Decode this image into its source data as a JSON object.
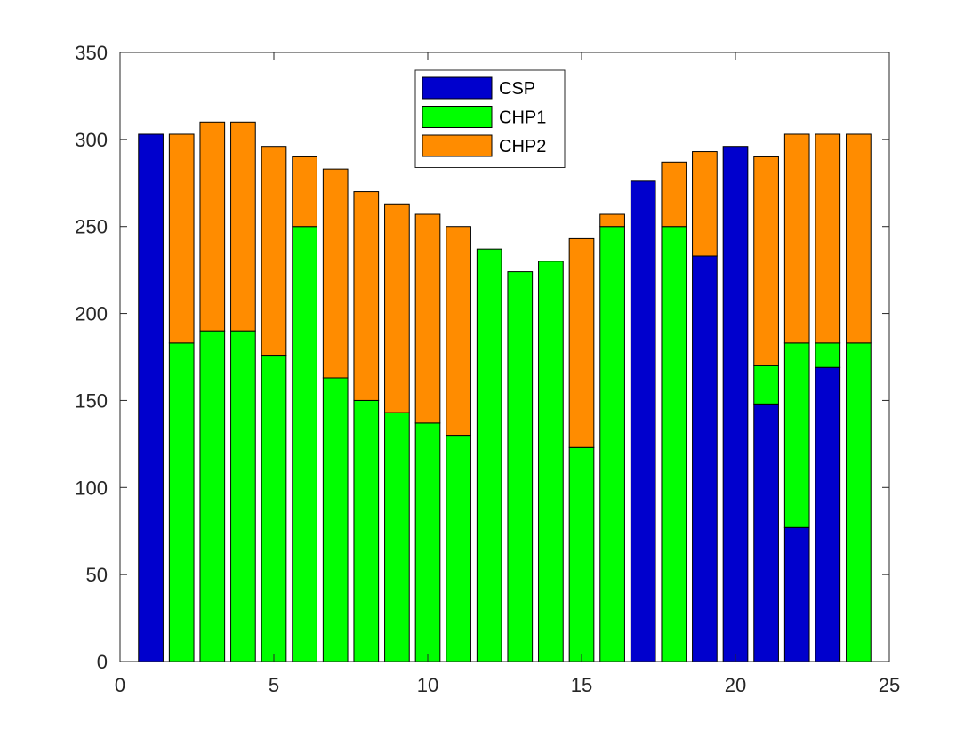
{
  "chart_data": {
    "type": "bar",
    "stacked": true,
    "title": "",
    "xlabel": "",
    "ylabel": "",
    "xlim": [
      0,
      25
    ],
    "ylim": [
      0,
      350
    ],
    "xticks": [
      "0",
      "5",
      "10",
      "15",
      "20",
      "25"
    ],
    "yticks": [
      "0",
      "50",
      "100",
      "150",
      "200",
      "250",
      "300",
      "350"
    ],
    "x": [
      1,
      2,
      3,
      4,
      5,
      6,
      7,
      8,
      9,
      10,
      11,
      12,
      13,
      14,
      15,
      16,
      17,
      18,
      19,
      20,
      21,
      22,
      23,
      24
    ],
    "series": [
      {
        "name": "CSP",
        "color": "#0000CD",
        "values": [
          303,
          0,
          0,
          0,
          0,
          0,
          0,
          0,
          0,
          0,
          0,
          0,
          0,
          0,
          0,
          0,
          276,
          0,
          233,
          296,
          148,
          77,
          169,
          0
        ]
      },
      {
        "name": "CHP1",
        "color": "#00FF00",
        "values": [
          0,
          183,
          190,
          190,
          176,
          250,
          163,
          150,
          143,
          137,
          130,
          237,
          224,
          230,
          123,
          250,
          0,
          250,
          0,
          0,
          22,
          106,
          14,
          183
        ]
      },
      {
        "name": "CHP2",
        "color": "#FF8C00",
        "values": [
          0,
          120,
          120,
          120,
          120,
          40,
          120,
          120,
          120,
          120,
          120,
          0,
          0,
          0,
          120,
          7,
          0,
          37,
          60,
          0,
          120,
          120,
          120,
          120
        ]
      }
    ],
    "grid": false,
    "legend_position": "top-center"
  }
}
